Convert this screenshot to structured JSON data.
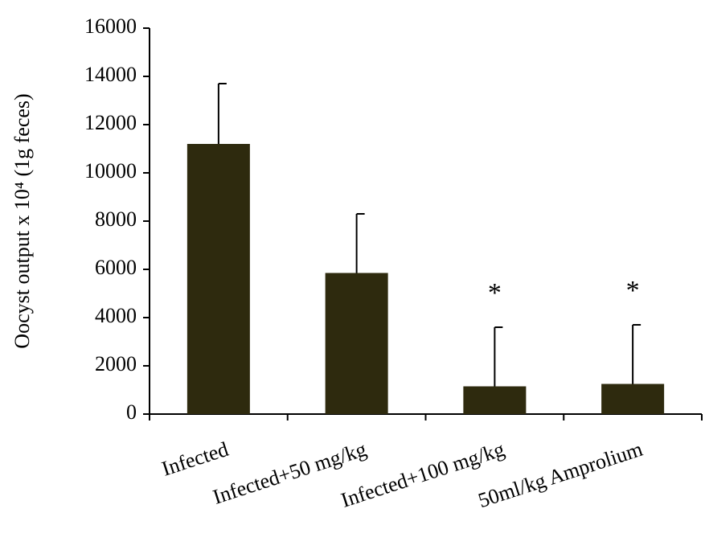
{
  "chart_data": {
    "type": "bar",
    "y_label": "Oocyst output x 10⁴ (1g feces)",
    "categories": [
      "Infected",
      "Infected+50 mg/kg",
      "Infected+100 mg/kg",
      "50ml/kg Amprolium"
    ],
    "values": [
      11200,
      5850,
      1150,
      1250
    ],
    "errors": [
      2500,
      2450,
      2450,
      2450
    ],
    "annotations": [
      null,
      null,
      "*",
      "*"
    ],
    "color": "#2e2a0e",
    "ylim": [
      0,
      16000
    ],
    "yticks": [
      0,
      2000,
      4000,
      6000,
      8000,
      10000,
      12000,
      14000,
      16000
    ],
    "grid": false
  }
}
